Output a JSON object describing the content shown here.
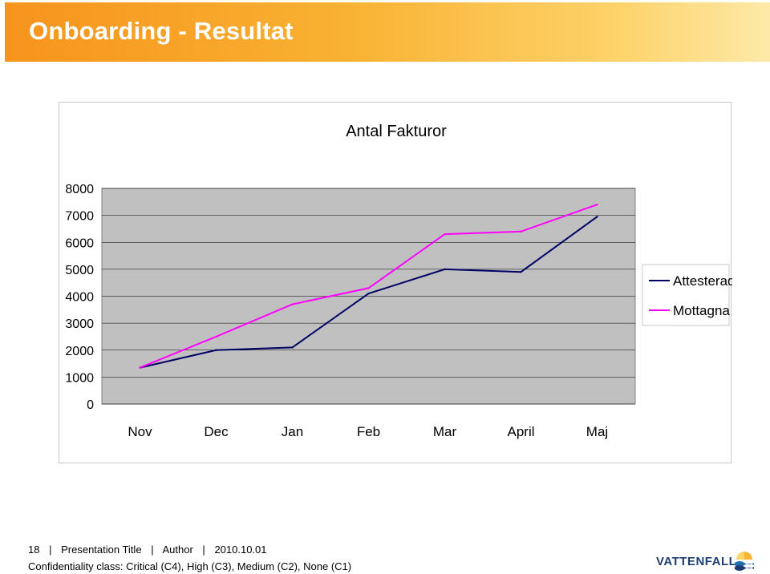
{
  "slide": {
    "title": "Onboarding - Resultat"
  },
  "chart_data": {
    "type": "line",
    "title": "Antal Fakturor",
    "categories": [
      "Nov",
      "Dec",
      "Jan",
      "Feb",
      "Mar",
      "April",
      "Maj"
    ],
    "series": [
      {
        "name": "Attesterade",
        "color": "#000066",
        "values": [
          1350,
          2000,
          2100,
          4100,
          5000,
          4900,
          6950
        ]
      },
      {
        "name": "Mottagna",
        "color": "#ff00ff",
        "values": [
          1350,
          2500,
          3700,
          4300,
          6300,
          6400,
          7400
        ]
      }
    ],
    "ylim": [
      0,
      8000
    ],
    "yticks": [
      "0",
      "1000",
      "2000",
      "3000",
      "4000",
      "5000",
      "6000",
      "7000",
      "8000"
    ],
    "grid": true,
    "plot_background": "#c0c0c0",
    "legend_position": "right"
  },
  "footer": {
    "page_number": "18",
    "presentation_title": "Presentation Title",
    "author": "Author",
    "date": "2010.10.01",
    "separator": "|",
    "confidentiality": "Confidentiality class: Critical (C4), High (C3), Medium (C2), None (C1)"
  },
  "logo": {
    "text": "VATTENFALL",
    "icon": "vattenfall-sun-wave-icon"
  }
}
